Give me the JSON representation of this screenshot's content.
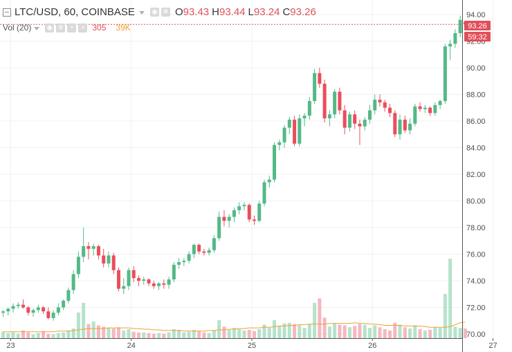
{
  "header": {
    "symbol_title": "LTC/USD, 60, COINBASE",
    "ohlc": [
      {
        "label": "O",
        "value": "93.43"
      },
      {
        "label": "H",
        "value": "93.44"
      },
      {
        "label": "L",
        "value": "93.24"
      },
      {
        "label": "C",
        "value": "93.26"
      }
    ],
    "volume_study": {
      "label": "Vol (20)",
      "volume_value": "305",
      "ma_value": "39K"
    }
  },
  "price_axis": {
    "last_price_tag": "93.26",
    "countdown_tag": "59:32"
  },
  "colors": {
    "up": "#53b987",
    "down": "#eb4d5c",
    "volume_up": "#b6e2cb",
    "volume_down": "#f5b8bf",
    "volume_ma": "#f0a030",
    "last_price_line": "#e04f5a"
  },
  "chart_data": {
    "type": "candlestick",
    "title": "LTC/USD, 60, COINBASE",
    "y_ticks": [
      "70.00",
      "72.00",
      "74.00",
      "76.00",
      "78.00",
      "80.00",
      "82.00",
      "84.00",
      "86.00",
      "88.00",
      "90.00",
      "92.00",
      "94.00"
    ],
    "ylim": [
      69.5,
      94.6
    ],
    "x_ticks": [
      {
        "label": "23",
        "index": 0
      },
      {
        "label": "24",
        "index": 24
      },
      {
        "label": "25",
        "index": 48
      },
      {
        "label": "26",
        "index": 72
      },
      {
        "label": "27",
        "index": 96
      }
    ],
    "grid": true,
    "candles": [
      [
        71.6,
        71.8,
        71.3,
        71.7
      ],
      [
        71.7,
        72.0,
        71.4,
        71.9
      ],
      [
        71.9,
        72.3,
        71.6,
        72.1
      ],
      [
        72.1,
        72.4,
        71.9,
        72.2
      ],
      [
        72.2,
        72.6,
        71.9,
        72.0
      ],
      [
        72.0,
        72.1,
        71.4,
        71.6
      ],
      [
        71.6,
        71.9,
        71.3,
        71.8
      ],
      [
        71.8,
        72.2,
        71.6,
        72.0
      ],
      [
        72.0,
        72.1,
        71.5,
        71.7
      ],
      [
        71.7,
        72.0,
        71.1,
        71.2
      ],
      [
        71.2,
        71.8,
        71.0,
        71.6
      ],
      [
        71.6,
        72.3,
        71.4,
        72.0
      ],
      [
        72.0,
        72.6,
        71.8,
        72.5
      ],
      [
        72.5,
        73.5,
        72.3,
        73.3
      ],
      [
        73.3,
        74.8,
        73.0,
        74.5
      ],
      [
        74.5,
        76.2,
        74.2,
        75.8
      ],
      [
        75.8,
        78.0,
        75.4,
        76.6
      ],
      [
        76.6,
        76.9,
        75.6,
        76.4
      ],
      [
        76.4,
        76.8,
        75.9,
        76.6
      ],
      [
        76.6,
        76.7,
        75.6,
        75.9
      ],
      [
        75.9,
        76.4,
        75.0,
        75.3
      ],
      [
        75.3,
        76.2,
        75.0,
        75.9
      ],
      [
        75.9,
        76.1,
        74.5,
        74.8
      ],
      [
        74.8,
        75.0,
        73.2,
        73.4
      ],
      [
        73.4,
        74.2,
        73.0,
        73.6
      ],
      [
        73.6,
        75.0,
        73.3,
        74.8
      ],
      [
        74.8,
        75.1,
        73.9,
        74.2
      ],
      [
        74.2,
        74.4,
        73.6,
        74.0
      ],
      [
        74.0,
        74.3,
        73.7,
        74.1
      ],
      [
        74.1,
        74.2,
        73.6,
        73.8
      ],
      [
        73.8,
        74.0,
        73.4,
        73.6
      ],
      [
        73.6,
        73.9,
        73.3,
        73.8
      ],
      [
        73.8,
        74.1,
        73.4,
        73.7
      ],
      [
        73.7,
        74.3,
        73.4,
        74.1
      ],
      [
        74.1,
        75.4,
        73.9,
        75.2
      ],
      [
        75.2,
        75.7,
        74.9,
        75.4
      ],
      [
        75.4,
        75.7,
        75.1,
        75.5
      ],
      [
        75.5,
        76.2,
        75.3,
        76.0
      ],
      [
        76.0,
        76.8,
        75.7,
        76.7
      ],
      [
        76.7,
        76.8,
        76.0,
        76.2
      ],
      [
        76.2,
        76.4,
        75.9,
        76.1
      ],
      [
        76.1,
        76.5,
        75.9,
        76.3
      ],
      [
        76.3,
        77.4,
        76.1,
        77.2
      ],
      [
        77.2,
        79.2,
        77.0,
        78.8
      ],
      [
        78.8,
        79.3,
        78.1,
        78.5
      ],
      [
        78.5,
        79.0,
        78.0,
        78.8
      ],
      [
        78.8,
        79.5,
        78.4,
        79.3
      ],
      [
        79.3,
        79.9,
        79.0,
        79.6
      ],
      [
        79.6,
        79.9,
        79.3,
        79.7
      ],
      [
        79.7,
        79.8,
        78.4,
        78.6
      ],
      [
        78.6,
        78.9,
        78.2,
        78.5
      ],
      [
        78.5,
        80.0,
        78.4,
        79.8
      ],
      [
        79.8,
        81.6,
        79.6,
        81.4
      ],
      [
        81.4,
        81.9,
        81.0,
        81.6
      ],
      [
        81.6,
        84.4,
        81.4,
        84.2
      ],
      [
        84.2,
        84.6,
        83.8,
        84.4
      ],
      [
        84.4,
        85.7,
        84.0,
        85.5
      ],
      [
        85.5,
        86.3,
        85.0,
        86.1
      ],
      [
        86.1,
        86.4,
        84.1,
        84.3
      ],
      [
        84.3,
        86.5,
        84.1,
        86.2
      ],
      [
        86.2,
        86.6,
        85.6,
        86.4
      ],
      [
        86.4,
        87.8,
        86.1,
        87.5
      ],
      [
        87.5,
        89.9,
        87.3,
        89.6
      ],
      [
        89.6,
        90.0,
        88.5,
        88.8
      ],
      [
        88.8,
        89.1,
        85.9,
        86.2
      ],
      [
        86.2,
        86.8,
        85.6,
        86.5
      ],
      [
        86.5,
        88.4,
        86.2,
        88.2
      ],
      [
        88.2,
        88.5,
        86.5,
        86.8
      ],
      [
        86.8,
        87.2,
        85.0,
        85.5
      ],
      [
        85.5,
        86.7,
        85.2,
        86.5
      ],
      [
        86.5,
        86.8,
        85.4,
        85.8
      ],
      [
        85.8,
        86.1,
        84.2,
        85.6
      ],
      [
        85.6,
        86.3,
        85.3,
        86.1
      ],
      [
        86.1,
        87.2,
        85.8,
        86.8
      ],
      [
        86.8,
        88.0,
        86.5,
        87.6
      ],
      [
        87.6,
        88.0,
        87.1,
        87.4
      ],
      [
        87.4,
        87.6,
        86.7,
        87.0
      ],
      [
        87.0,
        87.3,
        86.3,
        86.6
      ],
      [
        86.6,
        86.8,
        84.8,
        85.0
      ],
      [
        85.0,
        86.5,
        84.6,
        86.1
      ],
      [
        86.1,
        86.4,
        85.1,
        85.3
      ],
      [
        85.3,
        86.2,
        85.0,
        85.8
      ],
      [
        85.8,
        87.3,
        85.6,
        87.1
      ],
      [
        87.1,
        87.4,
        86.7,
        86.9
      ],
      [
        86.9,
        87.2,
        86.6,
        87.0
      ],
      [
        87.0,
        87.1,
        86.4,
        86.6
      ],
      [
        86.6,
        87.4,
        86.4,
        87.2
      ],
      [
        87.2,
        87.6,
        86.9,
        87.5
      ],
      [
        87.5,
        91.8,
        87.3,
        91.6
      ],
      [
        91.6,
        92.1,
        90.6,
        91.8
      ],
      [
        91.8,
        92.9,
        91.5,
        92.6
      ],
      [
        92.6,
        93.9,
        92.3,
        93.6
      ],
      [
        93.43,
        93.44,
        93.24,
        93.26
      ]
    ],
    "volume": [
      10,
      8,
      9,
      7,
      12,
      9,
      6,
      8,
      11,
      7,
      6,
      8,
      9,
      12,
      15,
      40,
      55,
      22,
      26,
      20,
      18,
      16,
      15,
      17,
      12,
      14,
      10,
      9,
      9,
      8,
      7,
      8,
      7,
      9,
      14,
      13,
      9,
      10,
      13,
      11,
      9,
      8,
      12,
      28,
      18,
      13,
      16,
      14,
      12,
      13,
      11,
      14,
      21,
      16,
      28,
      19,
      23,
      24,
      22,
      20,
      16,
      22,
      55,
      62,
      32,
      18,
      23,
      21,
      20,
      17,
      19,
      22,
      21,
      16,
      20,
      17,
      14,
      12,
      24,
      21,
      17,
      15,
      20,
      14,
      12,
      13,
      17,
      16,
      69,
      124,
      18,
      16,
      15
    ],
    "volume_ma": [
      10,
      10,
      10,
      10,
      10,
      10,
      10,
      10,
      10,
      10,
      10,
      11,
      11,
      11,
      12,
      13,
      14,
      15,
      15,
      15,
      15,
      16,
      16,
      16,
      16,
      16,
      15,
      15,
      14,
      14,
      13,
      13,
      12,
      12,
      12,
      12,
      11,
      11,
      11,
      11,
      11,
      12,
      12,
      13,
      13,
      14,
      14,
      15,
      15,
      16,
      16,
      16,
      17,
      17,
      18,
      19,
      19,
      20,
      20,
      21,
      21,
      22,
      22,
      22,
      22,
      23,
      23,
      23,
      23,
      23,
      24,
      23,
      23,
      22,
      22,
      21,
      20,
      20,
      20,
      20,
      19,
      19,
      19,
      19,
      18,
      17,
      17,
      17,
      17,
      18,
      21,
      24,
      25
    ]
  }
}
